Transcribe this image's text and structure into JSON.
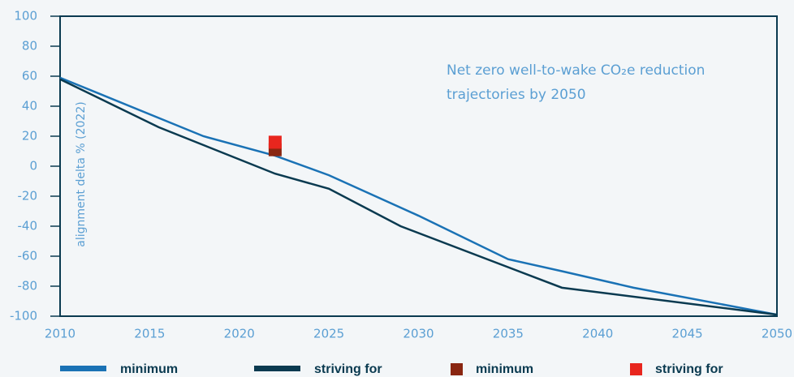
{
  "chart_data": {
    "type": "line",
    "annotation": [
      "Net zero well-to-wake CO₂e reduction",
      "trajectories by 2050"
    ],
    "y_label": "alignment delta % (2022)",
    "series": [
      {
        "name": "minimum",
        "type": "line",
        "color": "#1a72b5",
        "x": [
          2010,
          2018,
          2022,
          2025,
          2030,
          2035,
          2038,
          2042,
          2050
        ],
        "values": [
          59,
          20,
          7,
          -6,
          -33,
          -62,
          -70,
          -81,
          -99
        ]
      },
      {
        "name": "striving for",
        "type": "line",
        "color": "#0a3a50",
        "x": [
          2010,
          2015.5,
          2022,
          2025,
          2029,
          2038,
          2050
        ],
        "values": [
          58,
          26,
          -5,
          -15,
          -40,
          -81,
          -99
        ]
      },
      {
        "name": "minimum",
        "type": "scatter",
        "color": "#8a2611",
        "x": [
          2022
        ],
        "values": [
          11
        ]
      },
      {
        "name": "striving for",
        "type": "scatter",
        "color": "#e8261e",
        "x": [
          2022
        ],
        "values": [
          16
        ]
      }
    ],
    "xlim": [
      2010,
      2050
    ],
    "xticks": [
      2010,
      2015,
      2020,
      2025,
      2030,
      2035,
      2040,
      2045,
      2050
    ],
    "ylim": [
      -100,
      100
    ],
    "yticks": [
      100,
      80,
      60,
      40,
      20,
      0,
      -20,
      -40,
      -60,
      -80,
      -100
    ]
  }
}
